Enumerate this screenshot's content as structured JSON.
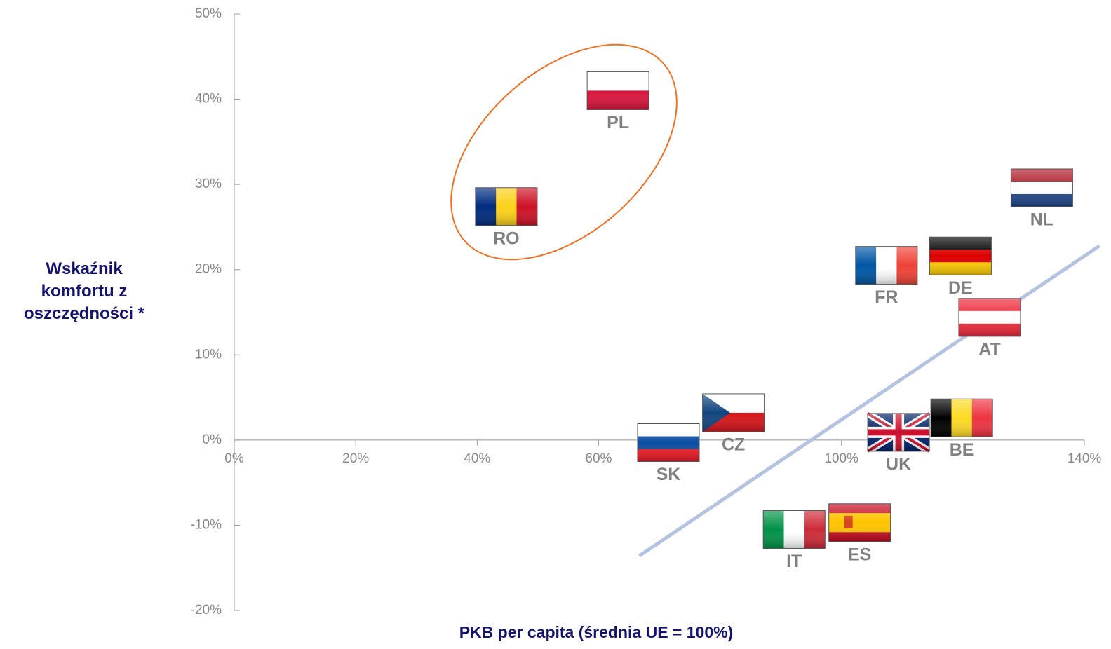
{
  "chart_data": {
    "type": "scatter",
    "xlabel": "PKB per capita (średnia UE = 100%)",
    "ylabel": "Wskaźnik komfortu z oszczędności *",
    "xlim": [
      0,
      140
    ],
    "ylim": [
      -20,
      50
    ],
    "xticks": [
      {
        "value": 0,
        "label": "0%"
      },
      {
        "value": 20,
        "label": "20%"
      },
      {
        "value": 40,
        "label": "40%"
      },
      {
        "value": 60,
        "label": "60%"
      },
      {
        "value": 100,
        "label": "100%"
      },
      {
        "value": 140,
        "label": "140%"
      }
    ],
    "yticks": [
      {
        "value": -20,
        "label": "-20%"
      },
      {
        "value": -10,
        "label": "-10%"
      },
      {
        "value": 0,
        "label": "0%"
      },
      {
        "value": 10,
        "label": "10%"
      },
      {
        "value": 20,
        "label": "20%"
      },
      {
        "value": 30,
        "label": "30%"
      },
      {
        "value": 40,
        "label": "40%"
      },
      {
        "value": 50,
        "label": "50%"
      }
    ],
    "trendline": {
      "color": "#b4c3e1",
      "x": [
        66.7,
        142.5
      ],
      "y": [
        -13.6,
        22.8
      ]
    },
    "points": [
      {
        "label": "PL",
        "x": 63.2,
        "y": 41.0,
        "flag": {
          "dir": "h",
          "colors": [
            "#ffffff",
            "#dc143c"
          ]
        }
      },
      {
        "label": "RO",
        "x": 44.8,
        "y": 27.4,
        "flag": {
          "dir": "v",
          "colors": [
            "#002b7f",
            "#fcd116",
            "#ce1126"
          ]
        }
      },
      {
        "label": "NL",
        "x": 133.0,
        "y": 29.6,
        "flag": {
          "dir": "h",
          "colors": [
            "#ae1c28",
            "#ffffff",
            "#21468b"
          ]
        }
      },
      {
        "label": "DE",
        "x": 119.6,
        "y": 21.6,
        "flag": {
          "dir": "h",
          "colors": [
            "#000000",
            "#dd0000",
            "#ffce00"
          ]
        }
      },
      {
        "label": "FR",
        "x": 107.4,
        "y": 20.5,
        "flag": {
          "dir": "v",
          "colors": [
            "#0055a4",
            "#ffffff",
            "#ef4135"
          ]
        }
      },
      {
        "label": "AT",
        "x": 124.4,
        "y": 14.4,
        "flag": {
          "dir": "h",
          "colors": [
            "#ed2939",
            "#ffffff",
            "#ed2939"
          ]
        }
      },
      {
        "label": "CZ",
        "x": 82.2,
        "y": 3.2,
        "flag": {
          "dir": "cz",
          "colors": [
            "#ffffff",
            "#d7141a",
            "#11457e"
          ]
        }
      },
      {
        "label": "SK",
        "x": 71.5,
        "y": -0.3,
        "flag": {
          "dir": "h",
          "colors": [
            "#ffffff",
            "#0b4ea2",
            "#ee1c25"
          ]
        }
      },
      {
        "label": "UK",
        "x": 109.4,
        "y": 0.9,
        "flag": {
          "dir": "uk",
          "colors": [
            "#012169",
            "#ffffff",
            "#c8102e"
          ]
        }
      },
      {
        "label": "BE",
        "x": 119.8,
        "y": 2.6,
        "flag": {
          "dir": "v",
          "colors": [
            "#000000",
            "#fdda24",
            "#ef3340"
          ]
        }
      },
      {
        "label": "IT",
        "x": 92.2,
        "y": -10.5,
        "flag": {
          "dir": "v",
          "colors": [
            "#009246",
            "#ffffff",
            "#ce2b37"
          ]
        }
      },
      {
        "label": "ES",
        "x": 103.0,
        "y": -9.7,
        "flag": {
          "dir": "es",
          "colors": [
            "#c60b1e",
            "#ffc400",
            "#c60b1e"
          ]
        }
      }
    ]
  }
}
